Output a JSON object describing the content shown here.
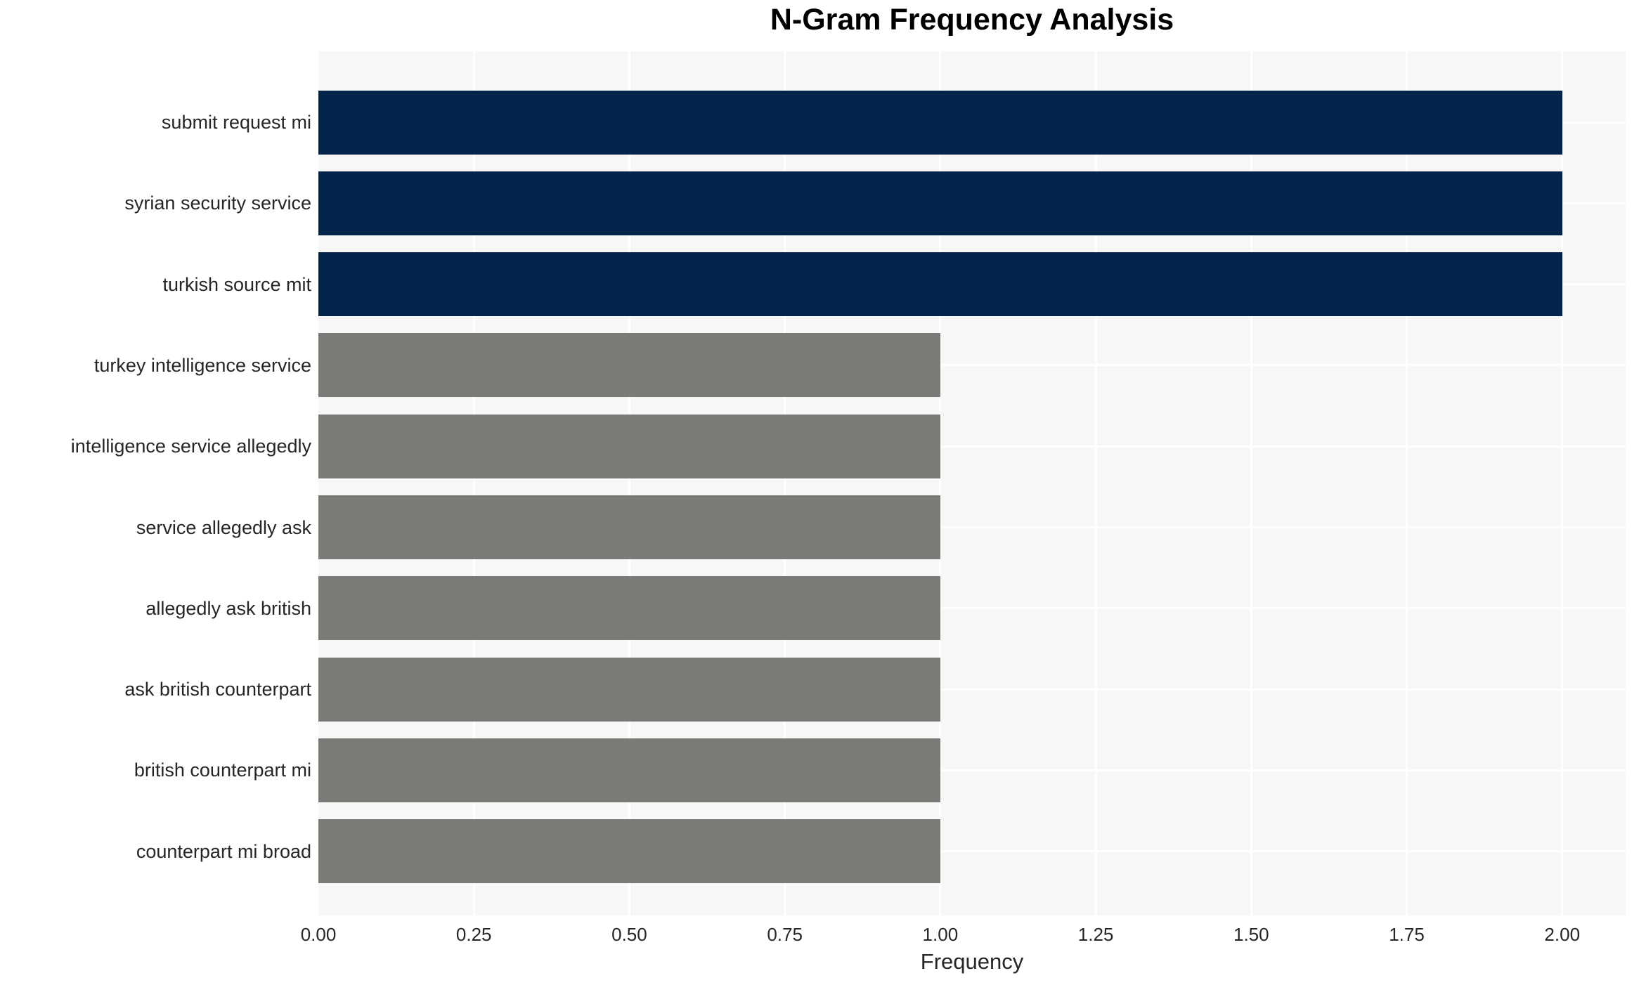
{
  "chart_data": {
    "type": "bar",
    "orientation": "horizontal",
    "title": "N-Gram Frequency Analysis",
    "xlabel": "Frequency",
    "ylabel": "",
    "categories": [
      "submit request mi",
      "syrian security service",
      "turkish source mit",
      "turkey intelligence service",
      "intelligence service allegedly",
      "service allegedly ask",
      "allegedly ask british",
      "ask british counterpart",
      "british counterpart mi",
      "counterpart mi broad"
    ],
    "values": [
      2,
      2,
      2,
      1,
      1,
      1,
      1,
      1,
      1,
      1
    ],
    "bar_colors": [
      "#03234b",
      "#03234b",
      "#03234b",
      "#7b7a76",
      "#7b7a76",
      "#7b7a76",
      "#7b7a76",
      "#7b7a76",
      "#7b7a76",
      "#7b7a76"
    ],
    "xlim": [
      0,
      2.102
    ],
    "xticks": [
      0,
      0.25,
      0.5,
      0.75,
      1.0,
      1.25,
      1.5,
      1.75,
      2.0
    ],
    "xtick_labels": [
      "0.00",
      "0.25",
      "0.50",
      "0.75",
      "1.00",
      "1.25",
      "1.50",
      "1.75",
      "2.00"
    ],
    "grid": true,
    "legend_position": "none",
    "colors": {
      "bar_high_freq": "#03234b",
      "bar_low_freq": "#7b7a76",
      "plot_background": "#f7f7f7",
      "gridline": "#ffffff",
      "tick_text": "#262626",
      "title_text": "#000000",
      "figure_background": "#ffffff"
    }
  }
}
